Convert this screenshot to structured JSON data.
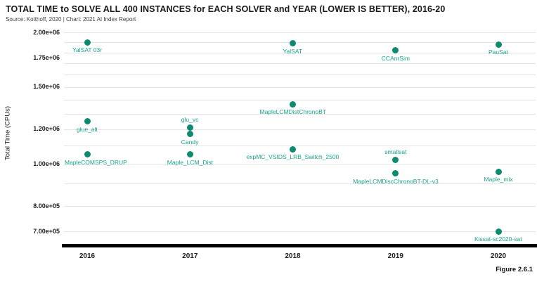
{
  "header": {
    "title": "TOTAL TIME to SOLVE ALL 400 INSTANCES for EACH SOLVER and YEAR (LOWER IS BETTER), 2016-20",
    "source": "Source: Kotthoff, 2020 | Chart: 2021 AI Index Report"
  },
  "figure_label": "Figure 2.6.1",
  "colors": {
    "point": "#0d8b70",
    "point_label": "#1aa38c",
    "gridline": "#e4e4e4",
    "axis_bar": "#000000",
    "bottom_accent": "#2ea78f"
  },
  "chart_data": {
    "type": "scatter",
    "title": "TOTAL TIME to SOLVE ALL 400 INSTANCES for EACH SOLVER and YEAR (LOWER IS BETTER), 2016-20",
    "xlabel": "",
    "ylabel": "Total Time (CPUs)",
    "y_scale": "log",
    "ylim": [
      660000,
      2050000
    ],
    "grid": "minor horizontal gridlines every 1e5",
    "legend": "none",
    "x_ticks": [
      2016,
      2017,
      2018,
      2019,
      2020
    ],
    "y_ticks": [
      {
        "label": "2.00e+06",
        "value": 2000000
      },
      {
        "label": "1.75e+06",
        "value": 1750000
      },
      {
        "label": "1.50e+06",
        "value": 1500000
      },
      {
        "label": "1.20e+06",
        "value": 1200000
      },
      {
        "label": "1.00e+06",
        "value": 1000000
      },
      {
        "label": "8.00e+05",
        "value": 800000
      },
      {
        "label": "7.00e+05",
        "value": 700000
      }
    ],
    "minor_gridline_values": [
      2000000,
      1900000,
      1800000,
      1700000,
      1600000,
      1500000,
      1400000,
      1300000,
      1200000,
      1100000,
      1000000,
      900000,
      800000,
      700000
    ],
    "points": [
      {
        "year": 2016,
        "solver": "YalSAT 03r",
        "value": 1900000,
        "label_pos": "below"
      },
      {
        "year": 2016,
        "solver": "glue_alt",
        "value": 1250000,
        "label_pos": "below"
      },
      {
        "year": 2016,
        "solver": "MapleCOMSPS_DRUP",
        "value": 1050000,
        "label_pos": "below"
      },
      {
        "year": 2017,
        "solver": "glu_vc",
        "value": 1210000,
        "label_pos": "above"
      },
      {
        "year": 2017,
        "solver": "Candy",
        "value": 1170000,
        "label_pos": "below"
      },
      {
        "year": 2017,
        "solver": "Maple_LCM_Dist",
        "value": 1050000,
        "label_pos": "below"
      },
      {
        "year": 2018,
        "solver": "YalSAT",
        "value": 1890000,
        "label_pos": "below"
      },
      {
        "year": 2018,
        "solver": "MapleLCMDistChronoBT",
        "value": 1370000,
        "label_pos": "below"
      },
      {
        "year": 2018,
        "solver": "expMC_VSIDS_LRB_Switch_2500",
        "value": 1080000,
        "label_pos": "below"
      },
      {
        "year": 2019,
        "solver": "CCAnrSim",
        "value": 1820000,
        "label_pos": "below"
      },
      {
        "year": 2019,
        "solver": "smallsat",
        "value": 1020000,
        "label_pos": "above"
      },
      {
        "year": 2019,
        "solver": "MapleLCMDiscChronoBT-DL-v3",
        "value": 950000,
        "label_pos": "below"
      },
      {
        "year": 2020,
        "solver": "PauSat",
        "value": 1880000,
        "label_pos": "below"
      },
      {
        "year": 2020,
        "solver": "Maple_mix",
        "value": 960000,
        "label_pos": "below"
      },
      {
        "year": 2020,
        "solver": "Kissat-sc2020-sat",
        "value": 700000,
        "label_pos": "below"
      }
    ]
  }
}
